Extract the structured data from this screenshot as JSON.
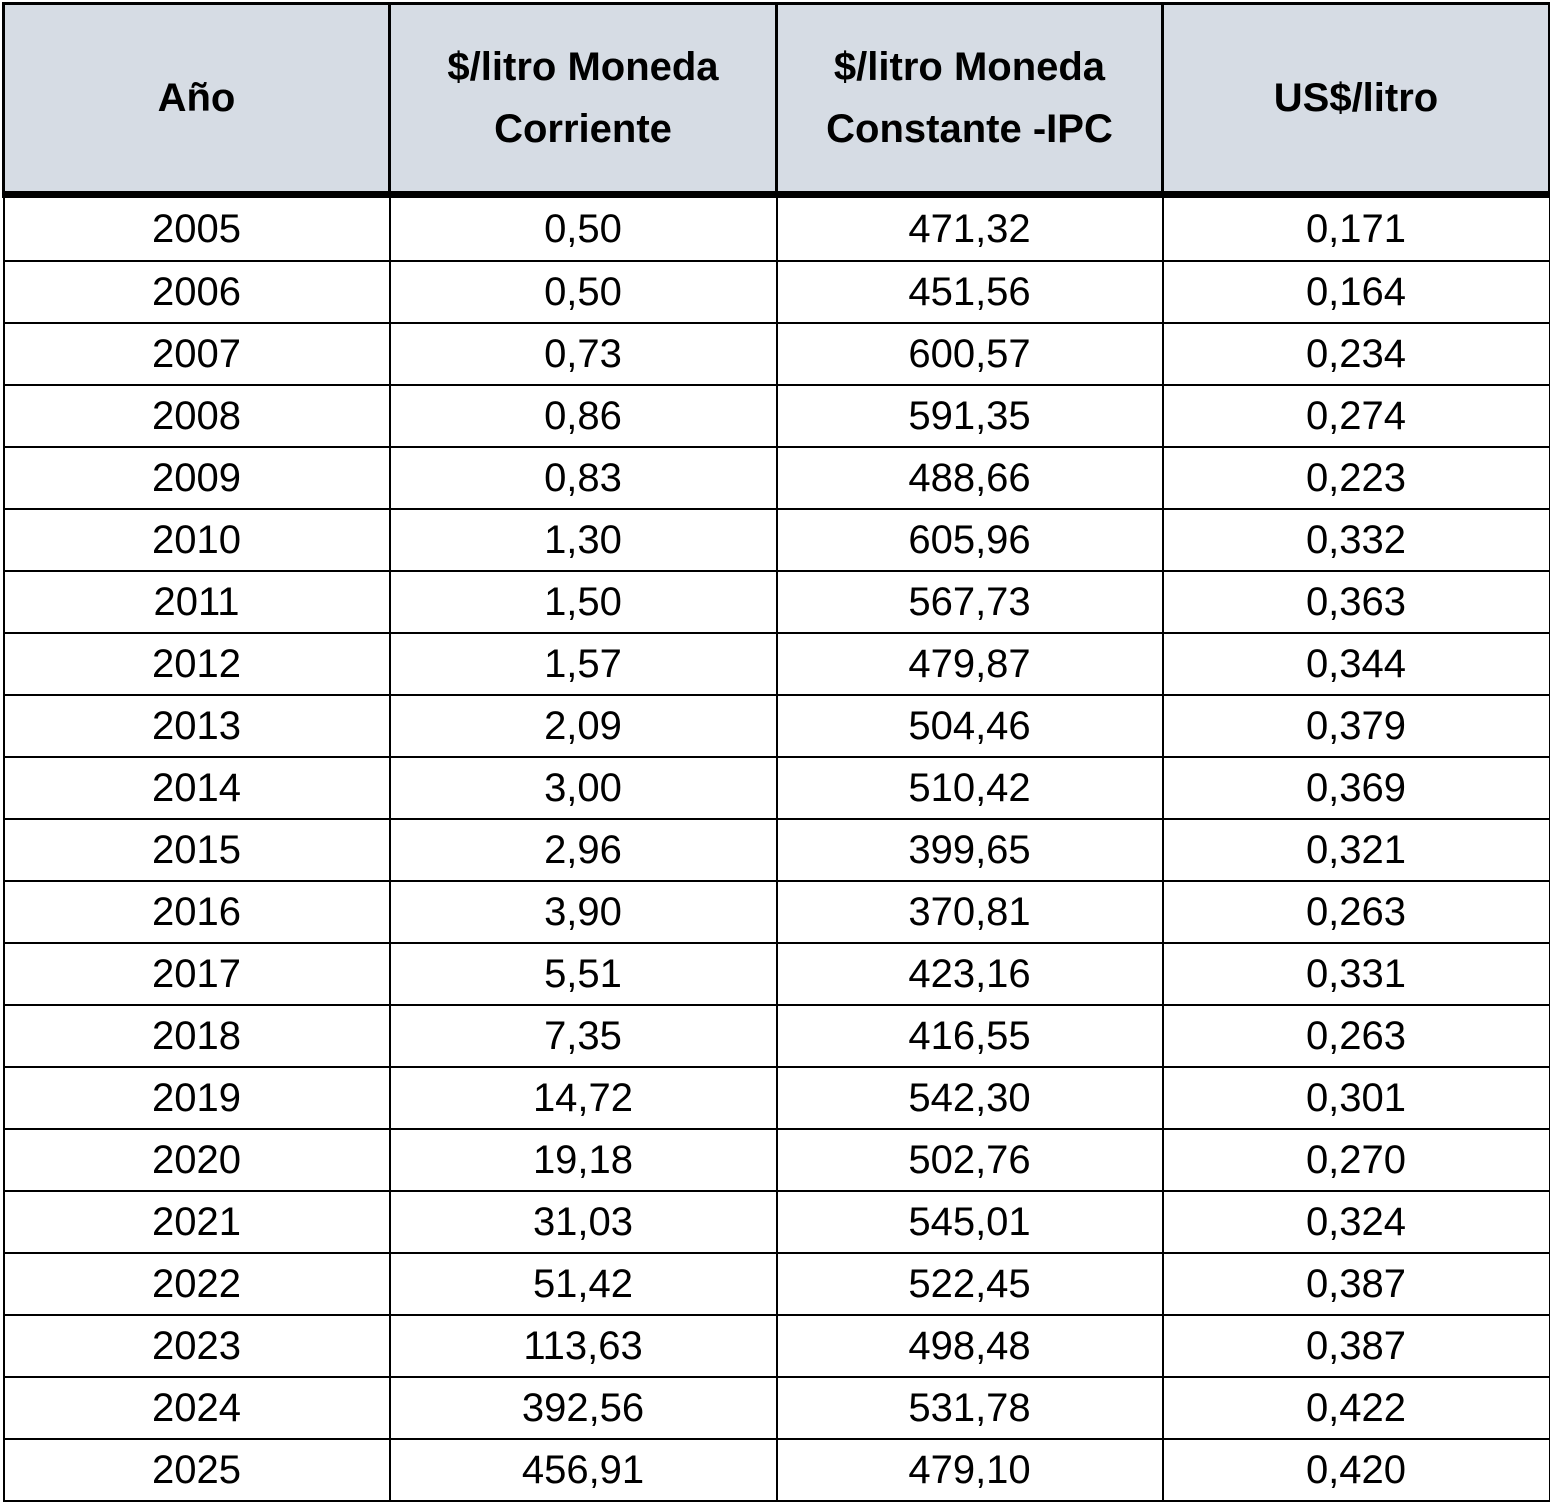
{
  "table": {
    "headers": [
      "Año",
      "$/litro Moneda\nCorriente",
      "$/litro Moneda\nConstante -IPC",
      "US$/litro"
    ],
    "rows": [
      [
        "2005",
        "0,50",
        "471,32",
        "0,171"
      ],
      [
        "2006",
        "0,50",
        "451,56",
        "0,164"
      ],
      [
        "2007",
        "0,73",
        "600,57",
        "0,234"
      ],
      [
        "2008",
        "0,86",
        "591,35",
        "0,274"
      ],
      [
        "2009",
        "0,83",
        "488,66",
        "0,223"
      ],
      [
        "2010",
        "1,30",
        "605,96",
        "0,332"
      ],
      [
        "2011",
        "1,50",
        "567,73",
        "0,363"
      ],
      [
        "2012",
        "1,57",
        "479,87",
        "0,344"
      ],
      [
        "2013",
        "2,09",
        "504,46",
        "0,379"
      ],
      [
        "2014",
        "3,00",
        "510,42",
        "0,369"
      ],
      [
        "2015",
        "2,96",
        "399,65",
        "0,321"
      ],
      [
        "2016",
        "3,90",
        "370,81",
        "0,263"
      ],
      [
        "2017",
        "5,51",
        "423,16",
        "0,331"
      ],
      [
        "2018",
        "7,35",
        "416,55",
        "0,263"
      ],
      [
        "2019",
        "14,72",
        "542,30",
        "0,301"
      ],
      [
        "2020",
        "19,18",
        "502,76",
        "0,270"
      ],
      [
        "2021",
        "31,03",
        "545,01",
        "0,324"
      ],
      [
        "2022",
        "51,42",
        "522,45",
        "0,387"
      ],
      [
        "2023",
        "113,63",
        "498,48",
        "0,387"
      ],
      [
        "2024",
        "392,56",
        "531,78",
        "0,422"
      ],
      [
        "2025",
        "456,91",
        "479,10",
        "0,420"
      ]
    ]
  },
  "colors": {
    "header_background": "#d6dce4",
    "border": "#000000",
    "text": "#000000"
  }
}
